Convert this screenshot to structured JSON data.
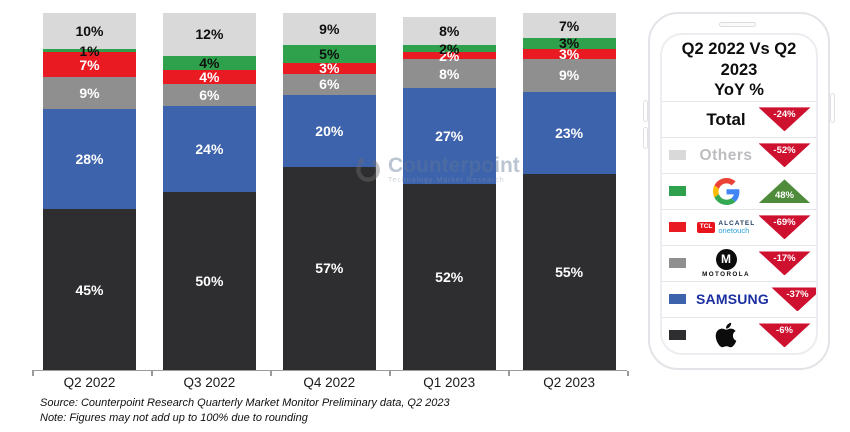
{
  "chart_data": {
    "type": "bar",
    "subtype": "stacked-percent",
    "categories": [
      "Q2 2022",
      "Q3 2022",
      "Q4 2022",
      "Q1 2023",
      "Q2 2023"
    ],
    "series": [
      {
        "name": "Apple",
        "color": "#2e2e30",
        "label_color": "#ffffff",
        "values": [
          45,
          50,
          57,
          52,
          55
        ]
      },
      {
        "name": "Samsung",
        "color": "#3d63ac",
        "label_color": "#ffffff",
        "values": [
          28,
          24,
          20,
          27,
          23
        ]
      },
      {
        "name": "Motorola",
        "color": "#8f8f8f",
        "label_color": "#ffffff",
        "values": [
          9,
          6,
          6,
          8,
          9
        ]
      },
      {
        "name": "TCL-Alcatel",
        "color": "#ea1a22",
        "label_color": "#ffffff",
        "values": [
          7,
          4,
          3,
          2,
          3
        ]
      },
      {
        "name": "Google",
        "color": "#2fa14d",
        "label_color": "#0f0f0f",
        "values": [
          1,
          4,
          5,
          2,
          3
        ]
      },
      {
        "name": "Others",
        "color": "#d9d9d9",
        "label_color": "#0f0f0f",
        "values": [
          10,
          12,
          9,
          8,
          7
        ]
      }
    ],
    "ylim": [
      0,
      100
    ],
    "value_suffix": "%",
    "legend_position": "right-panel",
    "grid": false
  },
  "panel": {
    "title_line1": "Q2 2022 Vs Q2 2023",
    "title_line2": "YoY %",
    "rows": [
      {
        "label": "Total",
        "value": "-24%",
        "direction": "down"
      },
      {
        "label": "Others",
        "value": "-52%",
        "direction": "down"
      },
      {
        "label": "Google",
        "value": "48%",
        "direction": "up"
      },
      {
        "label": "TCL Alcatel onetouch",
        "value": "-69%",
        "direction": "down",
        "tcl_badge": "TCL",
        "alcatel": "ALCATEL",
        "onetouch": "onetouch"
      },
      {
        "label": "Motorola",
        "value": "-17%",
        "direction": "down",
        "monogram": "M",
        "wordmark": "MOTOROLA"
      },
      {
        "label": "Samsung",
        "value": "-37%",
        "direction": "down",
        "wordmark": "SAMSUNG"
      },
      {
        "label": "Apple",
        "value": "-6%",
        "direction": "down"
      }
    ]
  },
  "watermark": {
    "brand": "Counterpoint",
    "tagline": "Technology Market Research"
  },
  "footer": {
    "source": "Source: Counterpoint Research Quarterly Market Monitor Preliminary data, Q2 2023",
    "note": "Note: Figures may not add up to 100% due to rounding"
  },
  "colors": {
    "arrow_down": "#cf1130",
    "arrow_up": "#4e8b3a",
    "axis": "#9a9a9a",
    "samsung_wordmark": "#1b2fa0",
    "tcl_red": "#e8131b",
    "others_text": "#bdbdc0"
  }
}
